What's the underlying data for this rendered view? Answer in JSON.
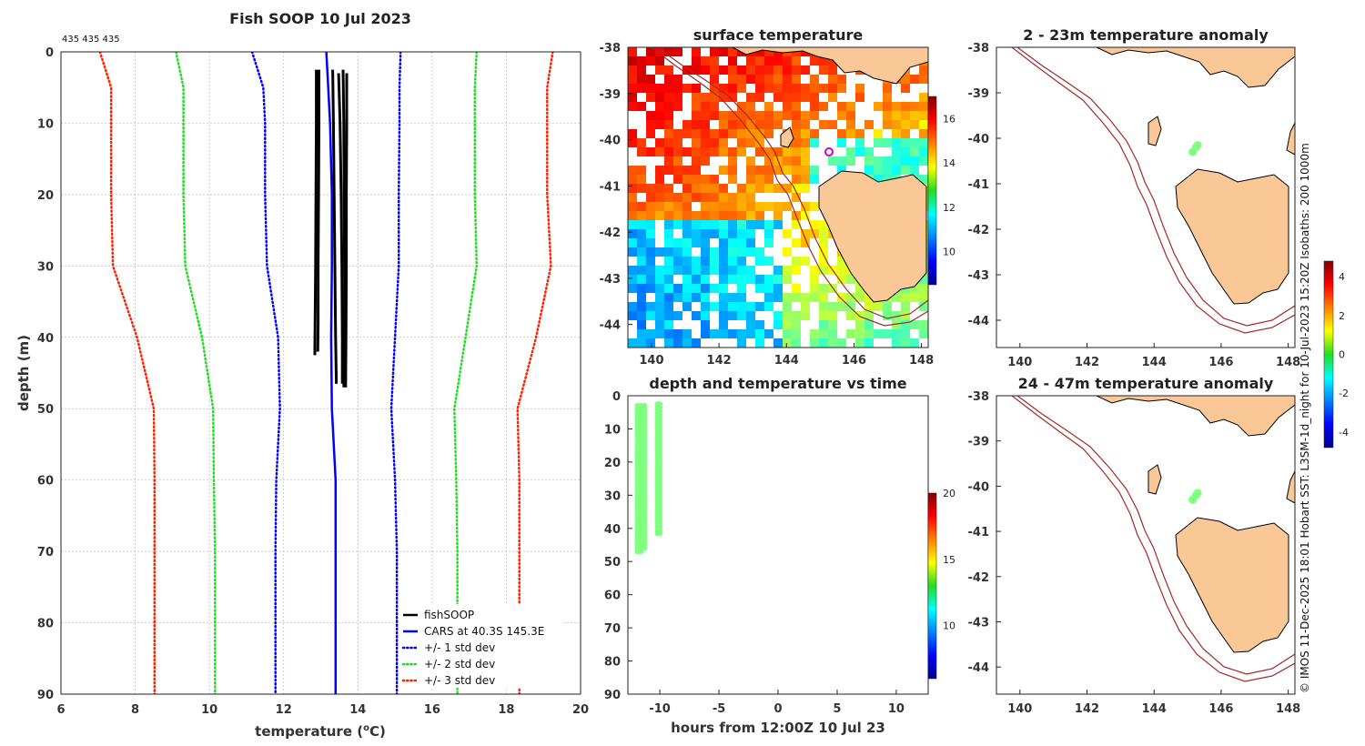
{
  "chart_data": [
    {
      "type": "line",
      "title": "Fish SOOP 10 Jul 2023",
      "counts_text": "435 435 435",
      "xlabel": "temperature (",
      "xlabel_sup": "o",
      "xlabel_tail": "C)",
      "ylabel": "depth (m)",
      "xlim": [
        6,
        20
      ],
      "ylim": [
        0,
        90
      ],
      "xticks": [
        "6",
        "8",
        "10",
        "12",
        "14",
        "16",
        "18",
        "20"
      ],
      "yticks": [
        "0",
        "10",
        "20",
        "30",
        "40",
        "50",
        "60",
        "70",
        "80",
        "90"
      ],
      "series": [
        {
          "name": "fishSOOP",
          "color": "#000000",
          "style": "solid",
          "width": 3,
          "profiles": [
            {
              "x": [
                12.88,
                12.88,
                12.87,
                12.86,
                12.85,
                12.84,
                12.84
              ],
              "y": [
                2.5,
                10,
                20,
                30,
                36,
                41.5,
                42.5
              ]
            },
            {
              "x": [
                12.95,
                12.95,
                12.94,
                12.93,
                12.93,
                12.92
              ],
              "y": [
                2.5,
                10,
                20,
                30,
                38,
                42
              ]
            },
            {
              "x": [
                13.32,
                13.34,
                13.36,
                13.38,
                13.4,
                13.42
              ],
              "y": [
                2.5,
                10,
                20,
                30,
                40,
                46.5
              ]
            },
            {
              "x": [
                13.48,
                13.52,
                13.55,
                13.57,
                13.58,
                13.58
              ],
              "y": [
                3,
                10,
                20,
                30,
                40,
                46.5
              ]
            },
            {
              "x": [
                13.6,
                13.62,
                13.63,
                13.64,
                13.65,
                13.62
              ],
              "y": [
                2.5,
                10,
                20,
                30,
                40,
                47
              ]
            },
            {
              "x": [
                13.7,
                13.7,
                13.69,
                13.69,
                13.68,
                13.67
              ],
              "y": [
                3,
                10,
                20,
                30,
                40,
                47
              ]
            }
          ]
        },
        {
          "name": "CARS at 40.3S 145.3E",
          "color": "#0000ff",
          "style": "solid",
          "width": 2.5,
          "x": [
            13.15,
            13.2,
            13.25,
            13.3,
            13.3,
            13.28,
            13.3,
            13.4,
            13.4,
            13.4
          ],
          "y": [
            0,
            5,
            10,
            20,
            30,
            40,
            50,
            60,
            70,
            90
          ]
        },
        {
          "name": "+/- 1 std dev",
          "color": "#0000ff",
          "style": "dotted",
          "width": 2.5,
          "lower": {
            "x": [
              11.15,
              11.45,
              11.5,
              11.5,
              11.55,
              11.85,
              11.9,
              11.8,
              11.78,
              11.78
            ],
            "y": [
              0,
              5,
              10,
              20,
              30,
              40,
              50,
              60,
              70,
              90
            ]
          },
          "upper": {
            "x": [
              15.15,
              15.12,
              15.12,
              15.1,
              15.1,
              15.0,
              14.9,
              15.0,
              15.05,
              15.05
            ],
            "y": [
              0,
              5,
              10,
              20,
              30,
              40,
              50,
              60,
              70,
              90
            ]
          }
        },
        {
          "name": "+/- 2 std dev",
          "color": "#22dd22",
          "style": "dotted",
          "width": 2.5,
          "lower": {
            "x": [
              9.1,
              9.3,
              9.3,
              9.3,
              9.35,
              9.8,
              10.1,
              10.12,
              10.15,
              10.15
            ],
            "y": [
              0,
              5,
              10,
              20,
              30,
              40,
              50,
              60,
              70,
              90
            ]
          },
          "upper": {
            "x": [
              17.2,
              17.15,
              17.15,
              17.15,
              17.2,
              16.9,
              16.6,
              16.65,
              16.68,
              16.68
            ],
            "y": [
              0,
              5,
              10,
              20,
              30,
              40,
              50,
              60,
              70,
              90
            ]
          }
        },
        {
          "name": "+/- 3 std dev",
          "color": "#ff2200",
          "style": "dotted",
          "width": 2.5,
          "lower": {
            "x": [
              7.05,
              7.35,
              7.35,
              7.35,
              7.4,
              8.05,
              8.5,
              8.52,
              8.52,
              8.52
            ],
            "y": [
              0,
              5,
              10,
              20,
              30,
              40,
              50,
              60,
              70,
              90
            ]
          },
          "upper": {
            "x": [
              19.25,
              19.1,
              19.1,
              19.1,
              19.2,
              18.8,
              18.3,
              18.35,
              18.35,
              18.35
            ],
            "y": [
              0,
              5,
              10,
              20,
              30,
              40,
              50,
              60,
              70,
              90
            ]
          }
        }
      ],
      "legend": [
        "fishSOOP",
        "CARS at 40.3S 145.3E",
        "+/- 1 std dev",
        "+/- 2 std dev",
        "+/- 3 std dev"
      ]
    },
    {
      "type": "heatmap",
      "title": "surface temperature",
      "xticks": [
        "140",
        "142",
        "144",
        "146",
        "148"
      ],
      "yticks": [
        "-38",
        "-39",
        "-40",
        "-41",
        "-42",
        "-43",
        "-44"
      ],
      "xlim": [
        139.3,
        148.2
      ],
      "ylim": [
        -44.5,
        -38
      ],
      "colorbar_ticks": [
        "10",
        "12",
        "14",
        "16"
      ],
      "colorbar_range": [
        8.5,
        17
      ]
    },
    {
      "type": "scatter",
      "title": "depth and temperature vs time",
      "xlabel": "hours from 12:00Z 10 Jul 23",
      "xticks": [
        "-10",
        "-5",
        "0",
        "5",
        "10"
      ],
      "yticks": [
        "0",
        "10",
        "20",
        "30",
        "40",
        "50",
        "60",
        "70",
        "80",
        "90"
      ],
      "xlim": [
        -12.7,
        12.7
      ],
      "ylim": [
        0,
        90
      ],
      "colorbar_ticks": [
        "10",
        "15",
        "20"
      ],
      "colorbar_range": [
        6,
        20
      ],
      "point_temperature": 13,
      "profiles": [
        {
          "hour": -11.9,
          "depth_top": 3,
          "depth_bottom": 47
        },
        {
          "hour": -11.6,
          "depth_top": 3,
          "depth_bottom": 47
        },
        {
          "hour": -11.3,
          "depth_top": 3,
          "depth_bottom": 46
        },
        {
          "hour": -10.2,
          "depth_top": 2.5,
          "depth_bottom": 42
        },
        {
          "hour": -10.0,
          "depth_top": 2.5,
          "depth_bottom": 42
        }
      ]
    },
    {
      "type": "scatter",
      "title": "2 - 23m temperature anomaly",
      "xticks": [
        "140",
        "142",
        "144",
        "146",
        "148"
      ],
      "yticks": [
        "-38",
        "-39",
        "-40",
        "-41",
        "-42",
        "-43",
        "-44"
      ],
      "xlim": [
        139.3,
        148.2
      ],
      "ylim": [
        -44.6,
        -38
      ],
      "points": [
        {
          "lon": 145.3,
          "lat": -40.15
        },
        {
          "lon": 145.25,
          "lat": -40.2
        },
        {
          "lon": 145.15,
          "lat": -40.3
        }
      ],
      "point_anomaly": 0
    },
    {
      "type": "scatter",
      "title": "24 - 47m temperature anomaly",
      "xticks": [
        "140",
        "142",
        "144",
        "146",
        "148"
      ],
      "yticks": [
        "-38",
        "-39",
        "-40",
        "-41",
        "-42",
        "-43",
        "-44"
      ],
      "xlim": [
        139.3,
        148.2
      ],
      "ylim": [
        -44.6,
        -38
      ],
      "points": [
        {
          "lon": 145.3,
          "lat": -40.15
        },
        {
          "lon": 145.25,
          "lat": -40.2
        },
        {
          "lon": 145.15,
          "lat": -40.3
        }
      ],
      "point_anomaly": 0
    }
  ],
  "anomaly_colorbar": {
    "ticks": [
      "4",
      "2",
      "0",
      "-2",
      "-4"
    ],
    "range": [
      -4.8,
      4.8
    ]
  },
  "credit": "© IMOS 11-Dec-2025 18:01 Hobart SST: L3SM-1d_night for 10-Jul-2023 15:20Z Isobaths: 200  1000m",
  "colors": {
    "land": "#fac896",
    "isobath": "#a52a2a",
    "marker": "#cc00cc"
  }
}
